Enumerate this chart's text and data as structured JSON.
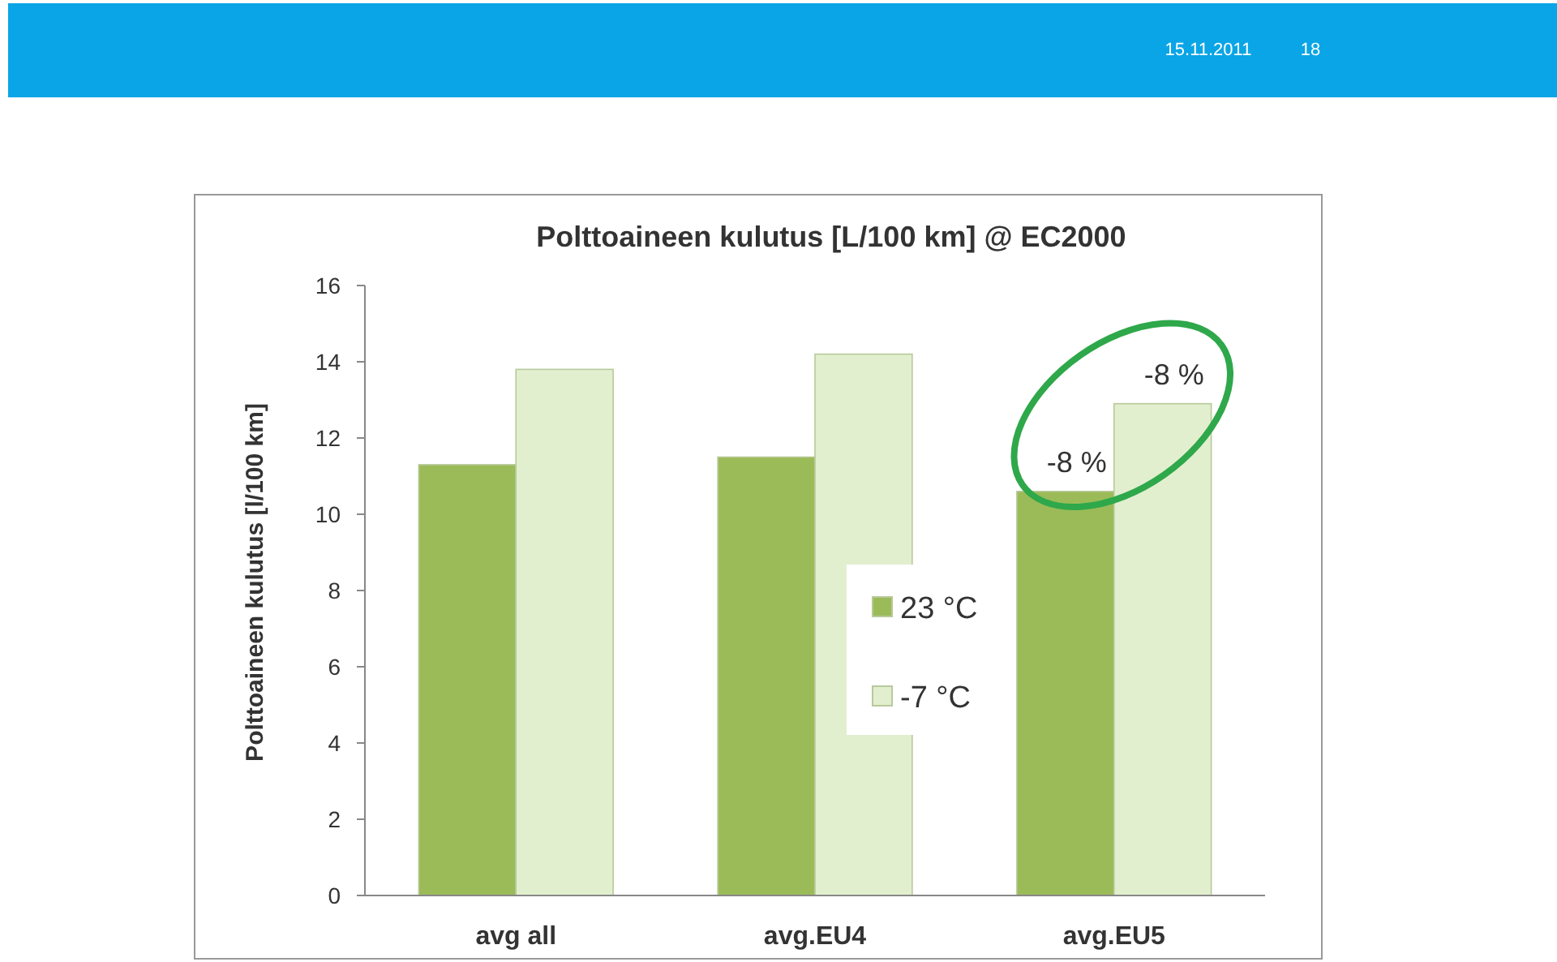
{
  "chart_data": {
    "type": "bar",
    "title": "Polttoaineen kulutus [L/100 km] @ EC2000",
    "ylabel": "Polttoaineen kulutus  [l/100 km]",
    "categories": [
      "avg all",
      "avg.EU4",
      "avg.EU5"
    ],
    "series": [
      {
        "name": "23 °C",
        "color": "#9bbb59",
        "values": [
          11.3,
          11.5,
          10.6
        ]
      },
      {
        "name": "-7 °C",
        "color": "#e2efcf",
        "values": [
          13.8,
          14.2,
          12.9
        ]
      }
    ],
    "ylim": [
      0,
      16
    ],
    "yticks": [
      0,
      2,
      4,
      6,
      8,
      10,
      12,
      14,
      16
    ],
    "grid": false,
    "legend": "center",
    "annotations": [
      {
        "text": "-8 %",
        "x": "avg.EU5",
        "y": 10.6
      },
      {
        "text": "-8 %",
        "x": "avg.EU5",
        "y": 12.9
      },
      "15.11.2011",
      "18"
    ]
  }
}
